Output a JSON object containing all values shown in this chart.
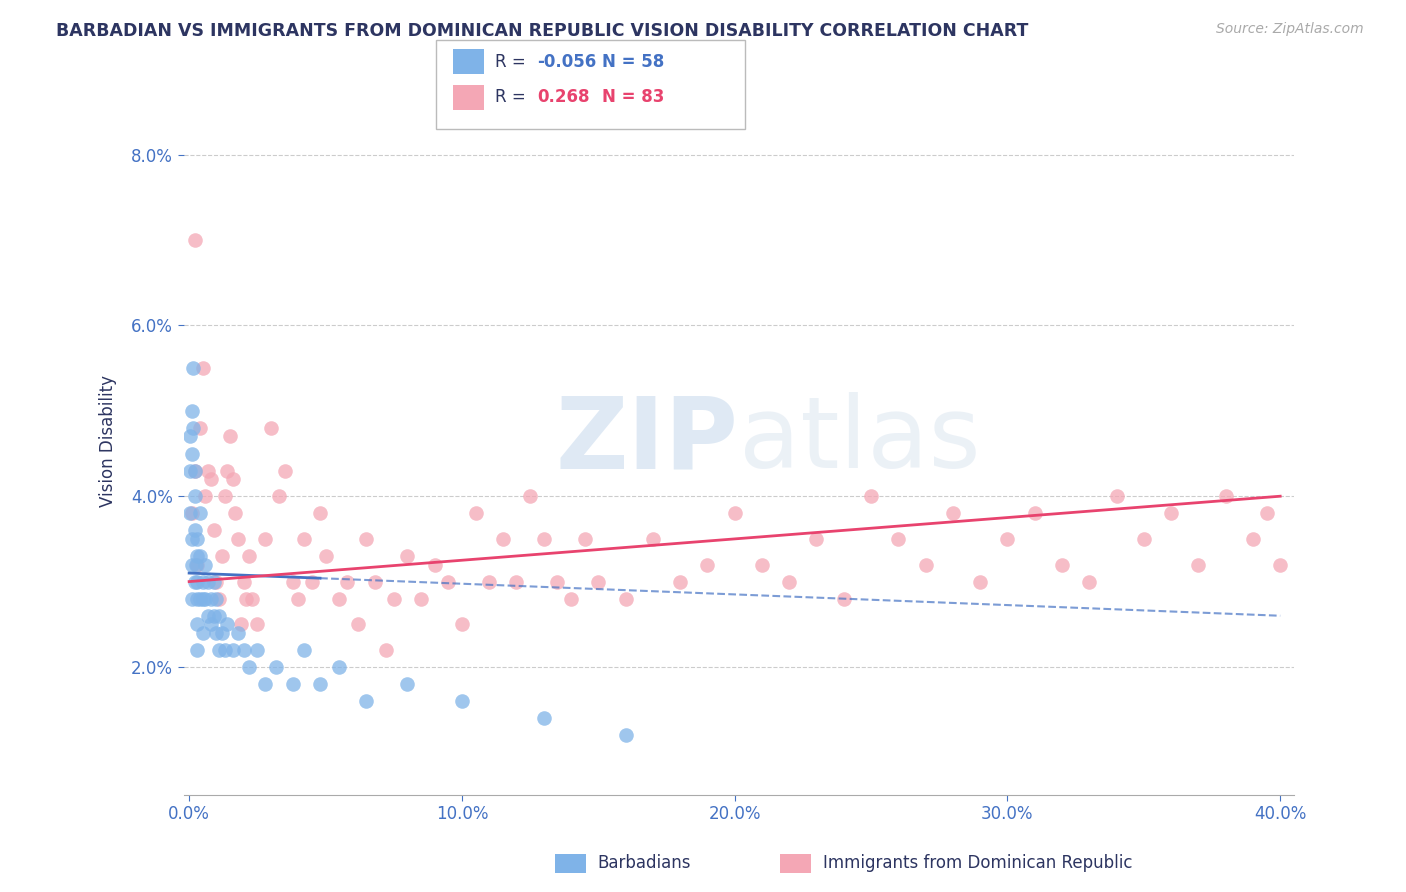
{
  "title": "BARBADIAN VS IMMIGRANTS FROM DOMINICAN REPUBLIC VISION DISABILITY CORRELATION CHART",
  "source": "Source: ZipAtlas.com",
  "xlabel_barbadian": "Barbadians",
  "xlabel_dominican": "Immigrants from Dominican Republic",
  "ylabel": "Vision Disability",
  "xlim": [
    -0.002,
    0.405
  ],
  "ylim": [
    0.005,
    0.088
  ],
  "yticks": [
    0.02,
    0.04,
    0.06,
    0.08
  ],
  "ytick_labels": [
    "2.0%",
    "4.0%",
    "6.0%",
    "8.0%"
  ],
  "xtick_labels": [
    "0.0%",
    "10.0%",
    "20.0%",
    "30.0%",
    "40.0%"
  ],
  "xticks": [
    0.0,
    0.1,
    0.2,
    0.3,
    0.4
  ],
  "legend_r_barbadian": "-0.056",
  "legend_n_barbadian": "58",
  "legend_r_dominican": "0.268",
  "legend_n_dominican": "83",
  "color_barbadian": "#7fb3e8",
  "color_dominican": "#f4a7b5",
  "color_trend_barbadian": "#4472c4",
  "color_trend_dominican": "#e8436e",
  "color_title": "#2d3561",
  "color_axis_labels": "#4472c4",
  "color_source": "#aaaaaa",
  "watermark_color": "#d8e8f5",
  "barbadian_x": [
    0.0005,
    0.0005,
    0.0005,
    0.001,
    0.001,
    0.001,
    0.001,
    0.001,
    0.0015,
    0.0015,
    0.002,
    0.002,
    0.002,
    0.002,
    0.0025,
    0.003,
    0.003,
    0.003,
    0.003,
    0.003,
    0.003,
    0.004,
    0.004,
    0.004,
    0.005,
    0.005,
    0.005,
    0.006,
    0.006,
    0.007,
    0.007,
    0.008,
    0.008,
    0.009,
    0.009,
    0.01,
    0.01,
    0.011,
    0.011,
    0.012,
    0.013,
    0.014,
    0.016,
    0.018,
    0.02,
    0.022,
    0.025,
    0.028,
    0.032,
    0.038,
    0.042,
    0.048,
    0.055,
    0.065,
    0.08,
    0.1,
    0.13,
    0.16
  ],
  "barbadian_y": [
    0.047,
    0.043,
    0.038,
    0.05,
    0.045,
    0.035,
    0.032,
    0.028,
    0.055,
    0.048,
    0.043,
    0.04,
    0.036,
    0.03,
    0.032,
    0.035,
    0.033,
    0.03,
    0.028,
    0.025,
    0.022,
    0.038,
    0.033,
    0.028,
    0.03,
    0.028,
    0.024,
    0.032,
    0.028,
    0.03,
    0.026,
    0.028,
    0.025,
    0.03,
    0.026,
    0.028,
    0.024,
    0.026,
    0.022,
    0.024,
    0.022,
    0.025,
    0.022,
    0.024,
    0.022,
    0.02,
    0.022,
    0.018,
    0.02,
    0.018,
    0.022,
    0.018,
    0.02,
    0.016,
    0.018,
    0.016,
    0.014,
    0.012
  ],
  "dominican_x": [
    0.001,
    0.002,
    0.003,
    0.004,
    0.005,
    0.006,
    0.007,
    0.008,
    0.009,
    0.01,
    0.011,
    0.012,
    0.013,
    0.014,
    0.015,
    0.016,
    0.017,
    0.018,
    0.019,
    0.02,
    0.021,
    0.022,
    0.023,
    0.025,
    0.028,
    0.03,
    0.033,
    0.035,
    0.038,
    0.04,
    0.042,
    0.045,
    0.048,
    0.05,
    0.055,
    0.058,
    0.062,
    0.065,
    0.068,
    0.072,
    0.075,
    0.08,
    0.085,
    0.09,
    0.095,
    0.1,
    0.105,
    0.11,
    0.115,
    0.12,
    0.125,
    0.13,
    0.135,
    0.14,
    0.145,
    0.15,
    0.16,
    0.17,
    0.18,
    0.19,
    0.2,
    0.21,
    0.22,
    0.23,
    0.24,
    0.25,
    0.26,
    0.27,
    0.28,
    0.29,
    0.3,
    0.31,
    0.32,
    0.33,
    0.34,
    0.35,
    0.36,
    0.37,
    0.38,
    0.39,
    0.395,
    0.4,
    0.002
  ],
  "dominican_y": [
    0.038,
    0.043,
    0.032,
    0.048,
    0.055,
    0.04,
    0.043,
    0.042,
    0.036,
    0.03,
    0.028,
    0.033,
    0.04,
    0.043,
    0.047,
    0.042,
    0.038,
    0.035,
    0.025,
    0.03,
    0.028,
    0.033,
    0.028,
    0.025,
    0.035,
    0.048,
    0.04,
    0.043,
    0.03,
    0.028,
    0.035,
    0.03,
    0.038,
    0.033,
    0.028,
    0.03,
    0.025,
    0.035,
    0.03,
    0.022,
    0.028,
    0.033,
    0.028,
    0.032,
    0.03,
    0.025,
    0.038,
    0.03,
    0.035,
    0.03,
    0.04,
    0.035,
    0.03,
    0.028,
    0.035,
    0.03,
    0.028,
    0.035,
    0.03,
    0.032,
    0.038,
    0.032,
    0.03,
    0.035,
    0.028,
    0.04,
    0.035,
    0.032,
    0.038,
    0.03,
    0.035,
    0.038,
    0.032,
    0.03,
    0.04,
    0.035,
    0.038,
    0.032,
    0.04,
    0.035,
    0.038,
    0.032,
    0.07
  ],
  "trend_barb_x0": 0.0,
  "trend_barb_x1": 0.4,
  "trend_barb_y0": 0.031,
  "trend_barb_y1": 0.026,
  "trend_barb_solid_end": 0.048,
  "trend_dom_x0": 0.0,
  "trend_dom_x1": 0.4,
  "trend_dom_y0": 0.03,
  "trend_dom_y1": 0.04
}
